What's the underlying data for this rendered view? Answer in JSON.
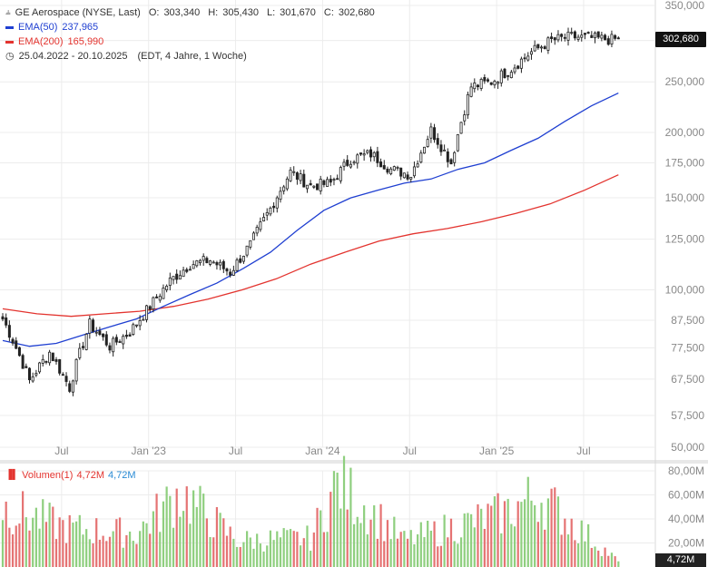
{
  "header": {
    "title": "GE Aerospace (NYSE, Last)",
    "ohlc": {
      "o_label": "O:",
      "o": "303,340",
      "h_label": "H:",
      "h": "305,430",
      "l_label": "L:",
      "l": "301,670",
      "c_label": "C:",
      "c": "302,680"
    },
    "ema50": {
      "label": "EMA(50)",
      "value": "237,965",
      "color": "#1f3fd1"
    },
    "ema200": {
      "label": "EMA(200)",
      "value": "165,990",
      "color": "#e3342f"
    },
    "period": "25.04.2022 - 20.10.2025",
    "period_note": "(EDT, 4 Jahre, 1 Woche)"
  },
  "price_badge": "302,680",
  "volume": {
    "label": "Volumen(1)",
    "value_red": "4,72M",
    "value_blue": "4,72M",
    "badge": "4,72M",
    "up_color": "#8fcf7f",
    "down_color": "#e57373"
  },
  "chart_data": [
    {
      "type": "candlestick",
      "scale": "log",
      "ylim": [
        50000,
        350000
      ],
      "yticks": [
        "350,000",
        "300,000",
        "250,000",
        "200,000",
        "175,000",
        "150,000",
        "125,000",
        "100,000",
        "87,500",
        "77,500",
        "67,500",
        "57,500",
        "50,000"
      ],
      "ytick_values": [
        350,
        300,
        250,
        200,
        175,
        150,
        125,
        100,
        87.5,
        77.5,
        67.5,
        57.5,
        50
      ],
      "xticks": [
        "Jul",
        "Jan '23",
        "Jul",
        "Jan '24",
        "Jul",
        "Jan '25",
        "Jul"
      ],
      "x_range": [
        "25.04.2022",
        "20.10.2025"
      ],
      "grid": true,
      "close_anchor_weeks": [
        0,
        8,
        14,
        20,
        26,
        32,
        38,
        44,
        50,
        56,
        62,
        68,
        74,
        80,
        86,
        92,
        98,
        104,
        110,
        116,
        122,
        128,
        134,
        140,
        146,
        152,
        158,
        164,
        170,
        176,
        182,
        184
      ],
      "close_anchor_values": [
        88,
        67,
        76,
        65,
        86,
        78,
        83,
        93,
        104,
        112,
        114,
        108,
        122,
        143,
        168,
        158,
        160,
        178,
        182,
        170,
        166,
        202,
        175,
        245,
        250,
        265,
        285,
        300,
        305,
        303,
        301,
        302.68
      ],
      "last_candle": {
        "open": 303.34,
        "high": 305.43,
        "low": 301.67,
        "close": 302.68
      },
      "ema50": [
        80,
        78,
        79,
        82,
        85,
        88,
        93,
        98,
        103,
        110,
        118,
        130,
        142,
        150,
        155,
        160,
        163,
        170,
        175,
        185,
        195,
        210,
        225,
        237.965
      ],
      "ema200": [
        92,
        90,
        89,
        90,
        91,
        93,
        96,
        100,
        105,
        112,
        118,
        124,
        128,
        131,
        135,
        140,
        146,
        155,
        165.99
      ]
    },
    {
      "type": "bar",
      "title": "Volumen(1)",
      "ylim": [
        0,
        80
      ],
      "yticks": [
        "80,00M",
        "60,00M",
        "40,00M",
        "20,00M"
      ],
      "ytick_values": [
        80,
        60,
        40,
        20
      ],
      "series_name": "Volumen(1)",
      "volume_anchor_weeks": [
        0,
        20,
        40,
        53,
        70,
        92,
        100,
        120,
        150,
        160,
        184
      ],
      "volume_anchor_values": [
        50,
        32,
        28,
        62,
        22,
        24,
        70,
        22,
        45,
        60,
        4.72
      ]
    }
  ]
}
